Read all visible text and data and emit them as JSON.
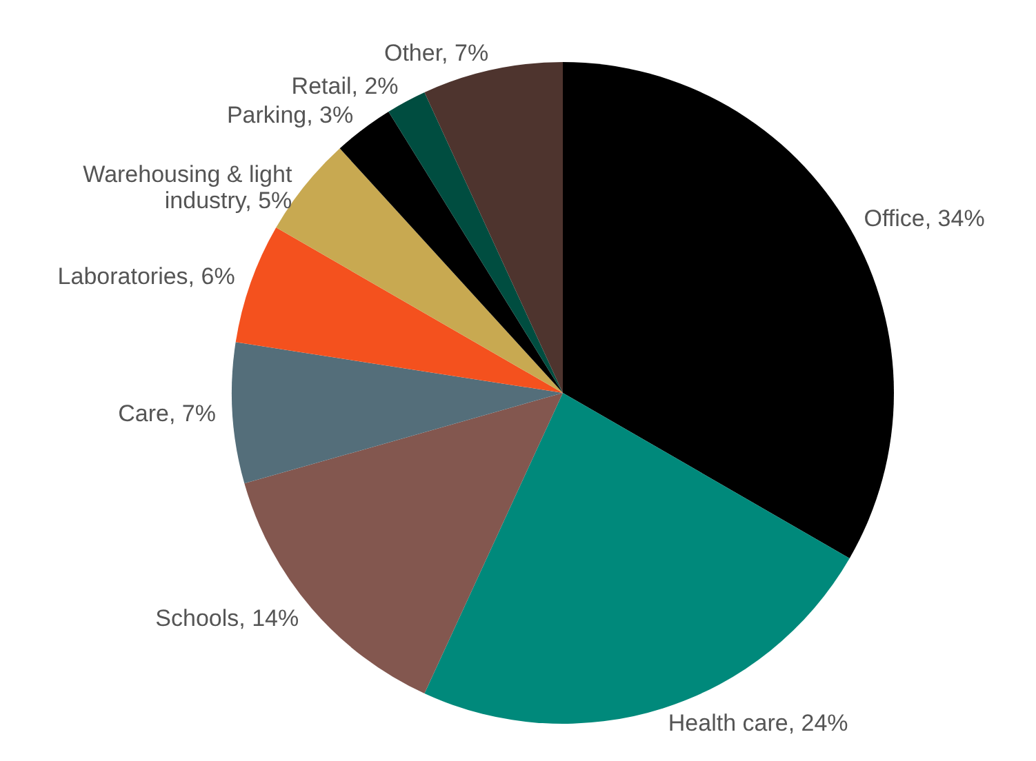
{
  "chart_data": {
    "type": "pie",
    "categories": [
      "Office",
      "Health care",
      "Schools",
      "Care",
      "Laboratories",
      "Warehousing & light industry",
      "Parking",
      "Retail",
      "Other"
    ],
    "values": [
      34,
      24,
      14,
      7,
      6,
      5,
      3,
      2,
      7
    ],
    "colors": [
      "#000000",
      "#00897b",
      "#83574f",
      "#546e7a",
      "#f4511e",
      "#c8a951",
      "#000000",
      "#004d40",
      "#4e342e"
    ],
    "value_labels": [
      "34%",
      "24%",
      "14%",
      "7%",
      "6%",
      "5%",
      "3%",
      "2%",
      "7%"
    ]
  }
}
